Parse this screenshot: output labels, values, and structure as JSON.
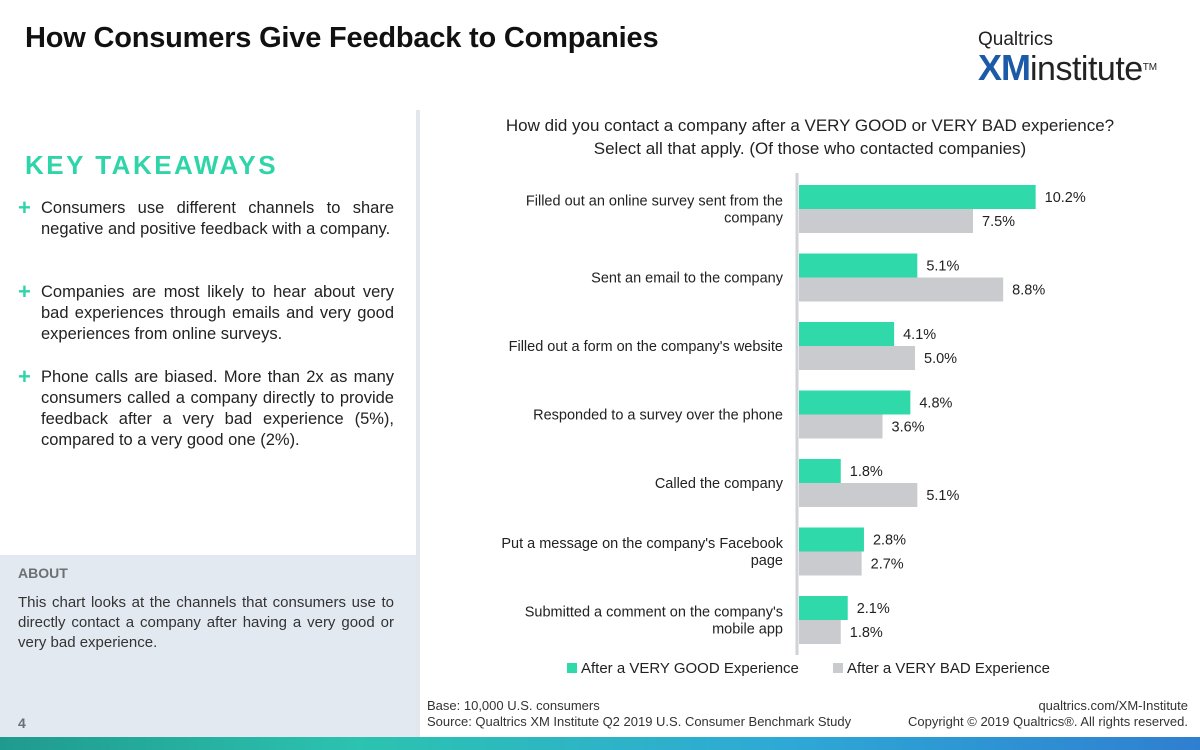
{
  "page": {
    "title": "How Consumers Give Feedback to Companies",
    "page_number": "4"
  },
  "logo": {
    "line1": "Qualtrics",
    "xm": "XM",
    "institute": "institute",
    "tm": "TM"
  },
  "takeaways": {
    "heading": "KEY TAKEAWAYS",
    "items": [
      "Consumers use different channels to share negative and positive feedback with a company.",
      "Companies are most likely to hear about very bad experiences through emails and very good experiences from online surveys.",
      "Phone calls are biased. More than 2x as many consumers called a company directly to provide feedback after a very bad experience (5%), compared to a very good one (2%)."
    ],
    "bullet_icon": "plus-icon"
  },
  "about": {
    "heading": "ABOUT",
    "text": "This chart looks at the channels that consumers use to directly contact a company after having a very good or very bad experience."
  },
  "footer": {
    "base": "Base: 10,000 U.S. consumers",
    "source": "Source: Qualtrics XM Institute Q2 2019 U.S. Consumer Benchmark Study",
    "url": "qualtrics.com/XM-Institute",
    "copyright": "Copyright © 2019 Qualtrics®. All rights reserved."
  },
  "colors": {
    "good": "#2fd9aa",
    "bad": "#c9cbce",
    "accent": "#2fd5a8"
  },
  "chart_data": {
    "type": "bar",
    "orientation": "horizontal",
    "title": "How did you contact a company after a VERY GOOD or VERY BAD experience?",
    "subtitle": "Select all that apply. (Of those who contacted companies)",
    "categories": [
      [
        "Filled out an online survey sent from the",
        "company"
      ],
      [
        "Sent an email to the company"
      ],
      [
        "Filled out a form on the company's website"
      ],
      [
        "Responded to a survey over the phone"
      ],
      [
        "Called the company"
      ],
      [
        "Put a message on the company's Facebook",
        "page"
      ],
      [
        "Submitted a comment on the company's",
        "mobile app"
      ]
    ],
    "series": [
      {
        "name": "After a VERY GOOD Experience",
        "values": [
          10.2,
          5.1,
          4.1,
          4.8,
          1.8,
          2.8,
          2.1
        ],
        "labels": [
          "10.2%",
          "5.1%",
          "4.1%",
          "4.8%",
          "1.8%",
          "2.8%",
          "2.1%"
        ]
      },
      {
        "name": "After a VERY BAD Experience",
        "values": [
          7.5,
          8.8,
          5.0,
          3.6,
          5.1,
          2.7,
          1.8
        ],
        "labels": [
          "7.5%",
          "8.8%",
          "5.0%",
          "3.6%",
          "5.1%",
          "2.7%",
          "1.8%"
        ]
      }
    ],
    "xlim": [
      0,
      12
    ],
    "legend_position": "bottom",
    "grid": false
  }
}
